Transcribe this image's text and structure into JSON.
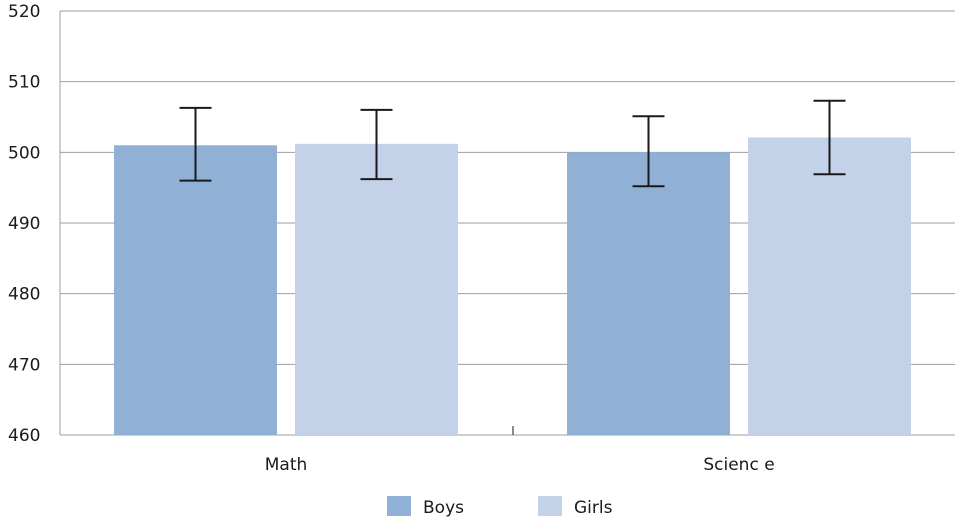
{
  "chart_data": {
    "type": "bar",
    "categories": [
      "Math",
      "Scienc e"
    ],
    "series": [
      {
        "name": "Boys",
        "values": [
          501,
          500
        ],
        "error_low": [
          496,
          495.2
        ],
        "error_high": [
          506.3,
          505.1
        ],
        "color": "#91b0d6"
      },
      {
        "name": "Girls",
        "values": [
          501.2,
          502.1
        ],
        "error_low": [
          496.2,
          496.9
        ],
        "error_high": [
          506,
          507.3
        ],
        "color": "#c3d2e8"
      }
    ],
    "title": "",
    "xlabel": "",
    "ylabel": "",
    "ylim": [
      460,
      520
    ],
    "yticks": [
      460,
      470,
      480,
      490,
      500,
      510,
      520
    ],
    "grid": true,
    "legend_position": "bottom-center",
    "error_bar_color": "#1a1a1a",
    "grid_color": "#9e9e9e"
  }
}
